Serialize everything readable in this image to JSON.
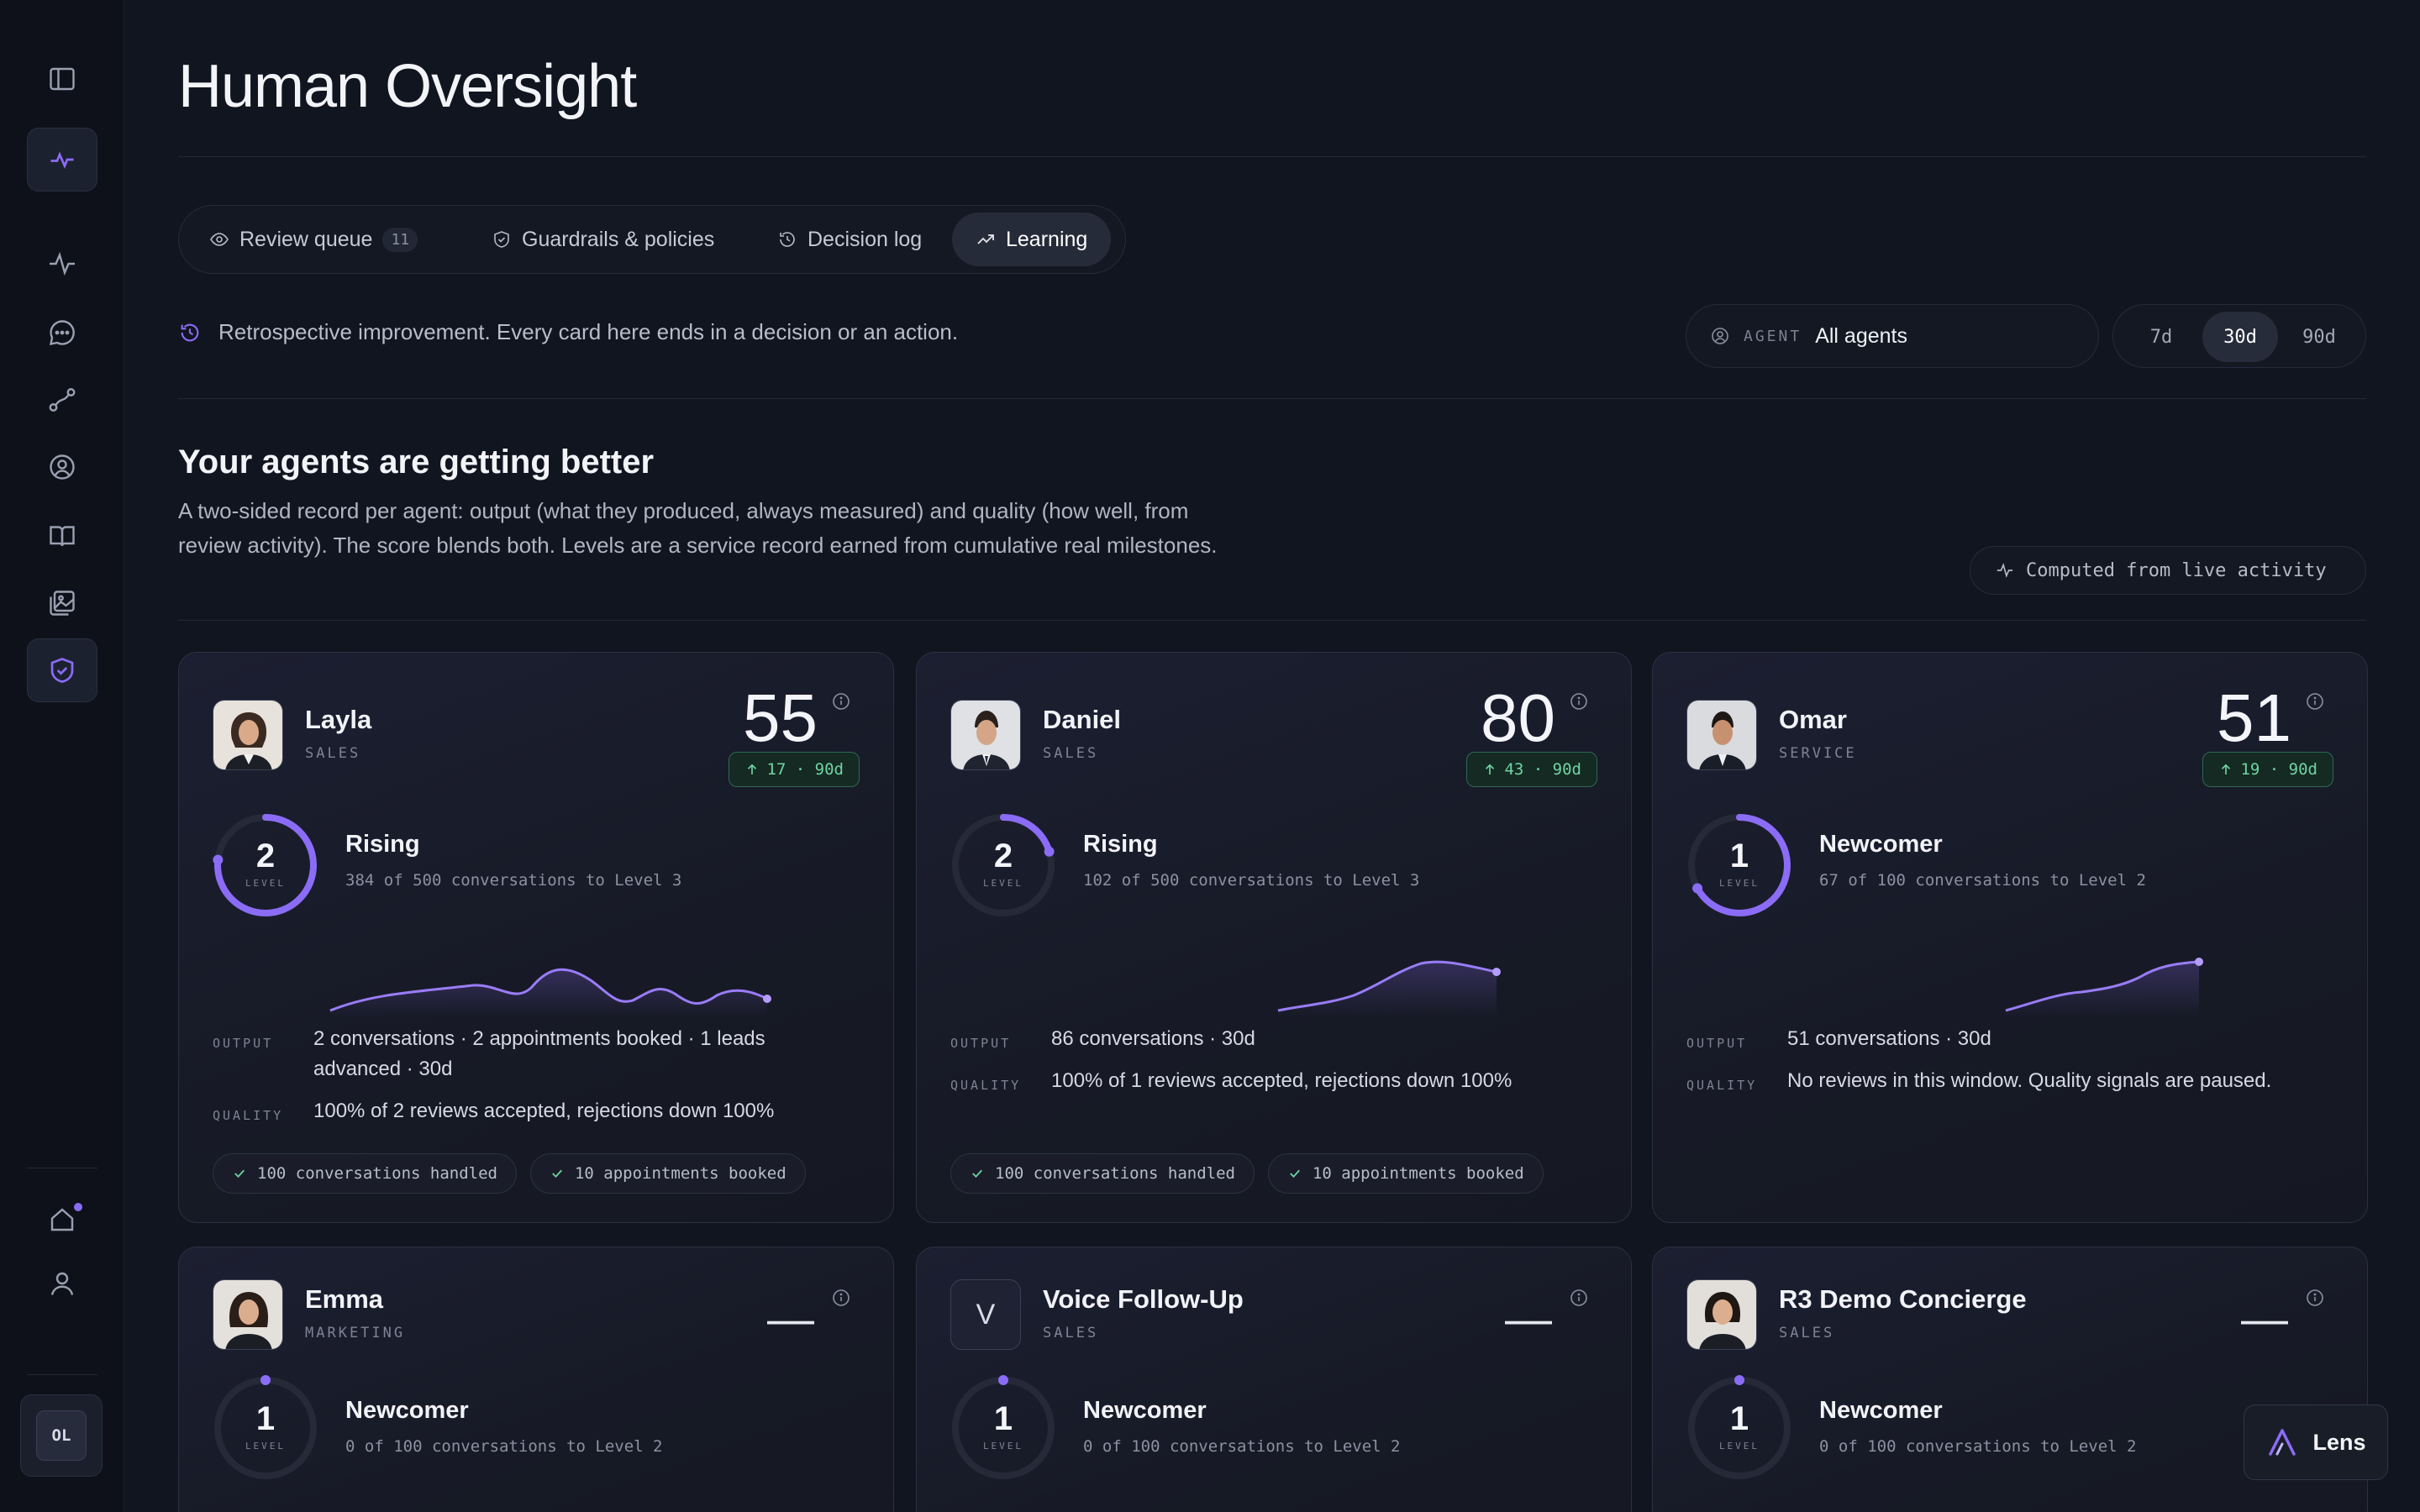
{
  "page": {
    "title": "Human Oversight"
  },
  "sidebar": {
    "items": [
      {
        "icon": "panel-toggle-icon"
      },
      {
        "icon": "pulse-icon",
        "active": true
      },
      {
        "icon": "activity-icon"
      },
      {
        "icon": "chat-icon"
      },
      {
        "icon": "route-icon"
      },
      {
        "icon": "user-circle-icon"
      },
      {
        "icon": "book-icon"
      },
      {
        "icon": "gallery-icon"
      },
      {
        "icon": "shield-check-icon",
        "active": true
      }
    ],
    "bottom": [
      {
        "icon": "home-icon",
        "notification": true
      },
      {
        "icon": "user-icon"
      }
    ],
    "avatar_initials": "OL"
  },
  "tabs": [
    {
      "label": "Review queue",
      "count": "11",
      "icon": "eye-icon"
    },
    {
      "label": "Guardrails & policies",
      "icon": "shield-icon"
    },
    {
      "label": "Decision log",
      "icon": "history-icon"
    },
    {
      "label": "Learning",
      "icon": "trend-up-icon",
      "active": true
    }
  ],
  "info": {
    "text": "Retrospective improvement. Every card here ends in a decision or an action."
  },
  "agent_filter": {
    "label": "AGENT",
    "value": "All agents"
  },
  "range": {
    "options": [
      "7d",
      "30d",
      "90d"
    ],
    "selected": "30d"
  },
  "section": {
    "title": "Your agents are getting better",
    "description": "A two-sided record per agent: output (what they produced, always measured) and quality (how well, from review activity). The score blends both. Levels are a service record earned from cumulative real milestones.",
    "live_label": "Computed from live activity"
  },
  "labels": {
    "output": "OUTPUT",
    "quality": "QUALITY",
    "level": "LEVEL"
  },
  "cards": [
    {
      "name": "Layla",
      "team": "SALES",
      "score": "55",
      "delta": "17 · 90d",
      "level": "2",
      "tier": "Rising",
      "progress": "384 of 500 conversations to Level 3",
      "progress_value": 0.768,
      "output": "2 conversations · 2 appointments booked · 1 leads advanced · 30d",
      "quality": "100% of 2 reviews accepted, rejections down 100%",
      "badges": [
        "100 conversations handled",
        "10 appointments booked"
      ]
    },
    {
      "name": "Daniel",
      "team": "SALES",
      "score": "80",
      "delta": "43 · 90d",
      "level": "2",
      "tier": "Rising",
      "progress": "102 of 500 conversations to Level 3",
      "progress_value": 0.204,
      "output": "86 conversations · 30d",
      "quality": "100% of 1 reviews accepted, rejections down 100%",
      "badges": [
        "100 conversations handled",
        "10 appointments booked"
      ]
    },
    {
      "name": "Omar",
      "team": "SERVICE",
      "score": "51",
      "delta": "19 · 90d",
      "level": "1",
      "tier": "Newcomer",
      "progress": "67 of 100 conversations to Level 2",
      "progress_value": 0.67,
      "output": "51 conversations · 30d",
      "quality": "No reviews in this window. Quality signals are paused."
    },
    {
      "name": "Emma",
      "team": "MARKETING",
      "score": "—",
      "level": "1",
      "tier": "Newcomer",
      "progress": "0 of 100 conversations to Level 2",
      "progress_value": 0
    },
    {
      "name": "Voice Follow-Up",
      "team": "SALES",
      "score": "—",
      "avatar_letter": "V",
      "level": "1",
      "tier": "Newcomer",
      "progress": "0 of 100 conversations to Level 2",
      "progress_value": 0
    },
    {
      "name": "R3 Demo Concierge",
      "team": "SALES",
      "score": "—",
      "level": "1",
      "tier": "Newcomer",
      "progress": "0 of 100 conversations to Level 2",
      "progress_value": 0
    }
  ],
  "lens": {
    "label": "Lens"
  },
  "colors": {
    "accent": "#8b6cf6",
    "positive": "#6fd4a2",
    "background": "#111520"
  }
}
